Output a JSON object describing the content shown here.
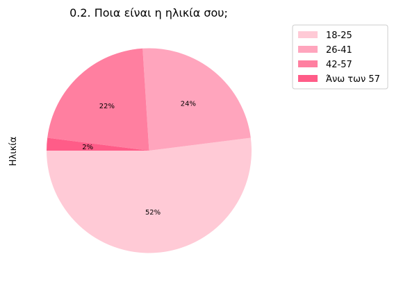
{
  "chart_data": {
    "type": "pie",
    "title": "0.2. Ποια είναι η ηλικία σου;",
    "ylabel": "Ηλικία",
    "legend_position": "upper-right-outside",
    "start_angle_deg": 180,
    "direction": "counterclockwise",
    "slices": [
      {
        "label": "18-25",
        "value": 52,
        "pct_label": "52%",
        "color": "#FFCAD6"
      },
      {
        "label": "26-41",
        "value": 24,
        "pct_label": "24%",
        "color": "#FFA5BD"
      },
      {
        "label": "42-57",
        "value": 22,
        "pct_label": "22%",
        "color": "#FF7FA0"
      },
      {
        "label": "Άνω των 57",
        "value": 2,
        "pct_label": "2%",
        "color": "#FF5C88"
      }
    ]
  }
}
